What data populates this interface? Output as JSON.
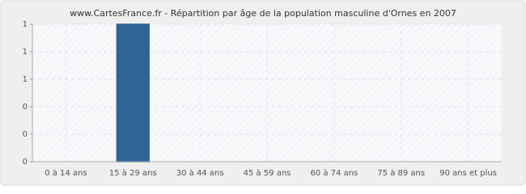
{
  "chart_data": {
    "type": "bar",
    "title": "www.CartesFrance.fr - Répartition par âge de la population masculine d'Ornes en 2007",
    "categories": [
      "0 à 14 ans",
      "15 à 29 ans",
      "30 à 44 ans",
      "45 à 59 ans",
      "60 à 74 ans",
      "75 à 89 ans",
      "90 ans et plus"
    ],
    "values": [
      0,
      1,
      0,
      0,
      0,
      0,
      0
    ],
    "color": "#2e6496",
    "ylim": [
      0,
      1
    ],
    "yticks": [
      0,
      {
        "value": 0.2,
        "label": "0"
      },
      {
        "value": 0.4,
        "label": "0"
      },
      {
        "value": 0.6,
        "label": "1"
      },
      {
        "value": 0.8,
        "label": "1"
      },
      1
    ],
    "grid": true
  }
}
